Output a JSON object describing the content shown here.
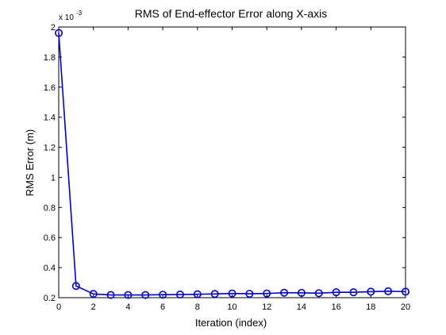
{
  "chart_data": {
    "type": "line",
    "title": "RMS of End-effector Error along X-axis",
    "xlabel": "Iteration (index)",
    "ylabel": "RMS Error (m)",
    "y_multiplier_label": "x 10",
    "y_multiplier_exponent": "-3",
    "xlim": [
      0,
      20
    ],
    "ylim": [
      0.2,
      2.0
    ],
    "xticks": [
      0,
      2,
      4,
      6,
      8,
      10,
      12,
      14,
      16,
      18,
      20
    ],
    "yticks": [
      0.2,
      0.4,
      0.6,
      0.8,
      1,
      1.2,
      1.4,
      1.6,
      1.8,
      2
    ],
    "ytick_labels": [
      "0.2",
      "0.4",
      "0.6",
      "0.8",
      "1",
      "1.2",
      "1.4",
      "1.6",
      "1.8",
      "2"
    ],
    "grid": false,
    "series": [
      {
        "color": "#0000cc",
        "marker": "circle",
        "x": [
          0,
          1,
          2,
          3,
          4,
          5,
          6,
          7,
          8,
          9,
          10,
          11,
          12,
          13,
          14,
          15,
          16,
          17,
          18,
          19,
          20
        ],
        "y": [
          1.96,
          0.278,
          0.225,
          0.218,
          0.218,
          0.218,
          0.22,
          0.221,
          0.223,
          0.225,
          0.228,
          0.226,
          0.228,
          0.233,
          0.232,
          0.23,
          0.236,
          0.236,
          0.24,
          0.243,
          0.24
        ]
      }
    ]
  }
}
